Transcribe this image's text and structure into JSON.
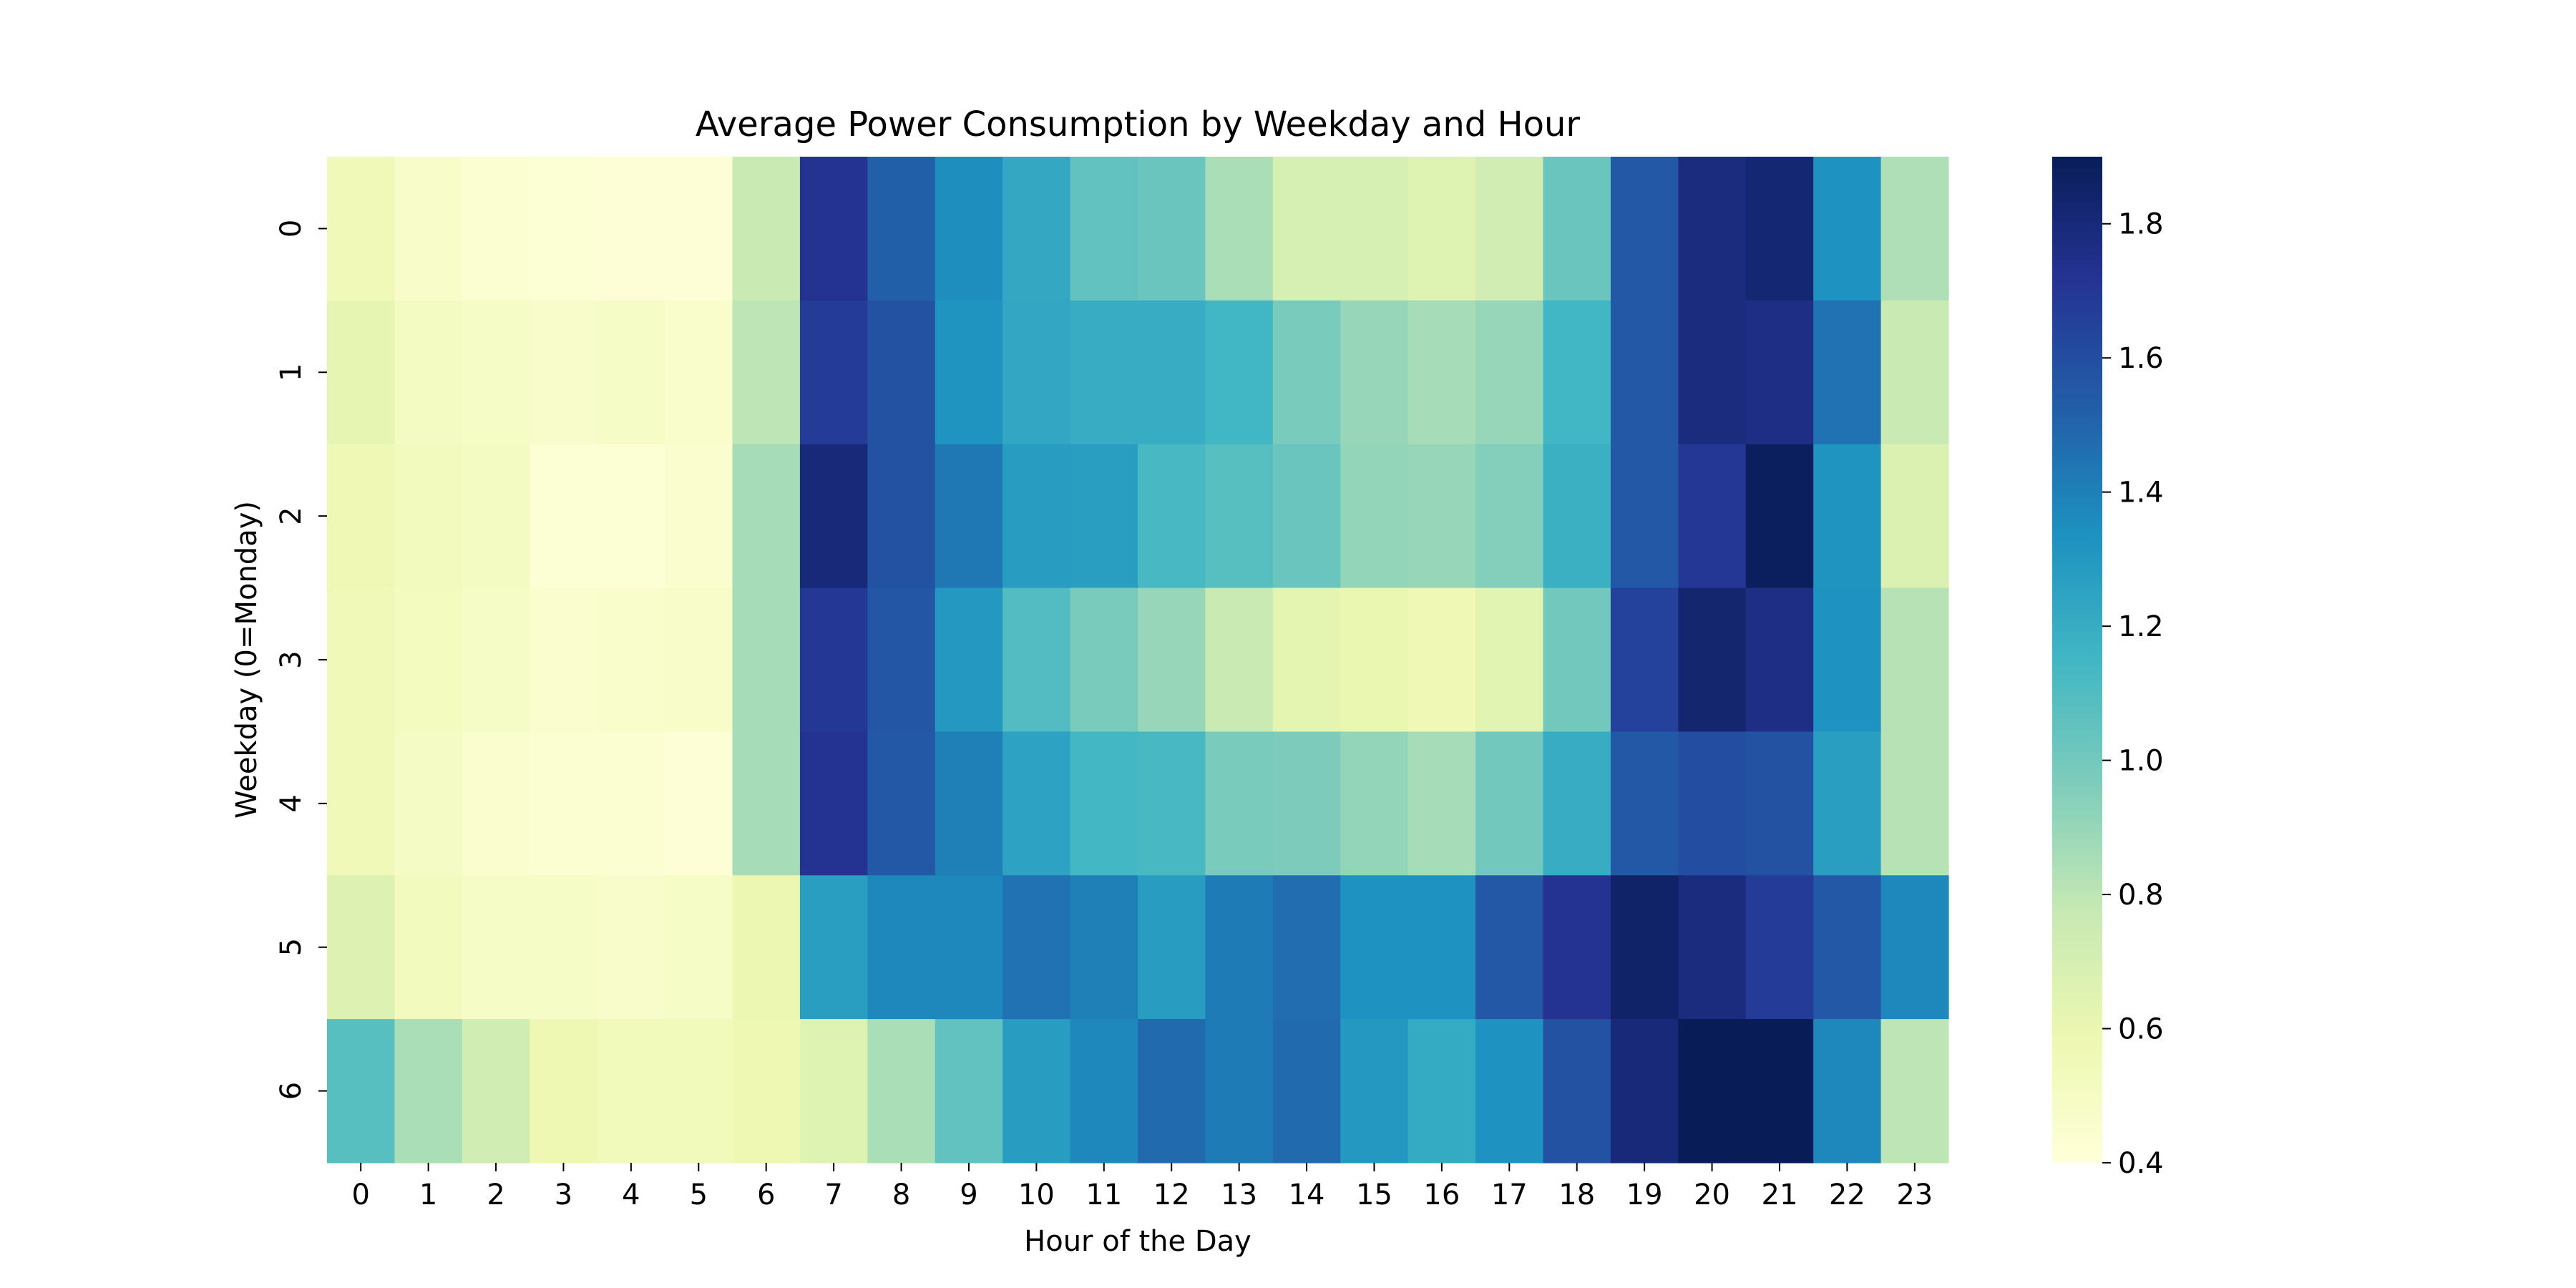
{
  "chart_data": {
    "type": "heatmap",
    "title": "Average Power Consumption by Weekday and Hour",
    "xlabel": "Hour of the Day",
    "ylabel": "Weekday (0=Monday)",
    "x_categories": [
      "0",
      "1",
      "2",
      "3",
      "4",
      "5",
      "6",
      "7",
      "8",
      "9",
      "10",
      "11",
      "12",
      "13",
      "14",
      "15",
      "16",
      "17",
      "18",
      "19",
      "20",
      "21",
      "22",
      "23"
    ],
    "y_categories": [
      "0",
      "1",
      "2",
      "3",
      "4",
      "5",
      "6"
    ],
    "values": [
      [
        0.55,
        0.48,
        0.44,
        0.43,
        0.42,
        0.42,
        0.76,
        1.72,
        1.52,
        1.35,
        1.22,
        1.05,
        1.03,
        0.85,
        0.7,
        0.7,
        0.66,
        0.72,
        1.03,
        1.55,
        1.78,
        1.82,
        1.33,
        0.84
      ],
      [
        0.62,
        0.51,
        0.49,
        0.47,
        0.49,
        0.46,
        0.8,
        1.68,
        1.58,
        1.32,
        1.23,
        1.2,
        1.2,
        1.15,
        0.98,
        0.9,
        0.86,
        0.9,
        1.15,
        1.55,
        1.78,
        1.76,
        1.45,
        0.76
      ],
      [
        0.57,
        0.53,
        0.51,
        0.43,
        0.43,
        0.45,
        0.86,
        1.8,
        1.58,
        1.43,
        1.28,
        1.27,
        1.13,
        1.08,
        1.03,
        0.91,
        0.9,
        0.95,
        1.18,
        1.55,
        1.7,
        1.88,
        1.32,
        0.68
      ],
      [
        0.56,
        0.52,
        0.49,
        0.45,
        0.46,
        0.48,
        0.86,
        1.7,
        1.56,
        1.3,
        1.1,
        0.98,
        0.9,
        0.76,
        0.63,
        0.6,
        0.57,
        0.64,
        1.0,
        1.65,
        1.83,
        1.76,
        1.33,
        0.82
      ],
      [
        0.56,
        0.5,
        0.45,
        0.44,
        0.44,
        0.42,
        0.86,
        1.72,
        1.55,
        1.4,
        1.25,
        1.14,
        1.13,
        0.98,
        0.97,
        0.91,
        0.86,
        1.0,
        1.2,
        1.55,
        1.6,
        1.58,
        1.27,
        0.82
      ],
      [
        0.67,
        0.53,
        0.49,
        0.49,
        0.47,
        0.49,
        0.59,
        1.27,
        1.37,
        1.37,
        1.45,
        1.4,
        1.28,
        1.42,
        1.47,
        1.33,
        1.33,
        1.55,
        1.72,
        1.85,
        1.78,
        1.68,
        1.55,
        1.37
      ],
      [
        1.08,
        0.85,
        0.73,
        0.58,
        0.54,
        0.54,
        0.58,
        0.66,
        0.85,
        1.05,
        1.28,
        1.37,
        1.48,
        1.42,
        1.48,
        1.3,
        1.21,
        1.33,
        1.58,
        1.8,
        1.9,
        1.9,
        1.37,
        0.8
      ]
    ],
    "colormap": "YlGnBu",
    "vmin": 0.4,
    "vmax": 1.9,
    "colorbar_ticks": [
      "0.4",
      "0.6",
      "0.8",
      "1.0",
      "1.2",
      "1.4",
      "1.6",
      "1.8"
    ]
  }
}
